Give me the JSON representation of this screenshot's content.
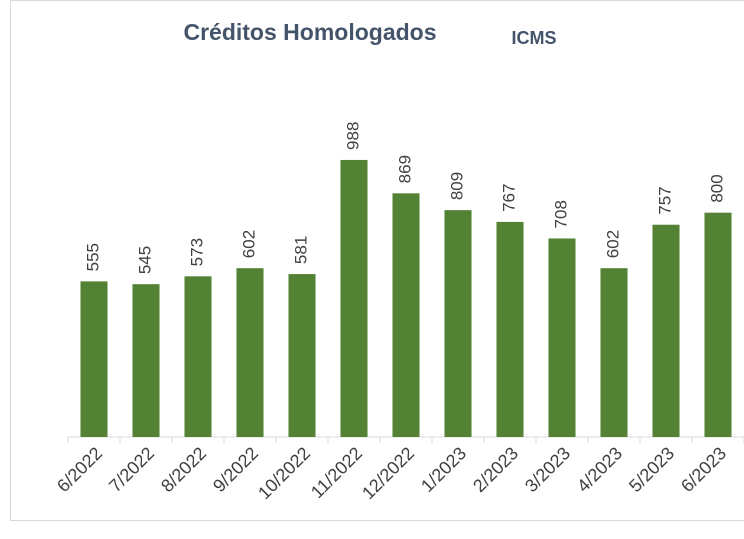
{
  "chart_data": {
    "type": "bar",
    "title": "Créditos Homologados",
    "subtitle": "ICMS",
    "categories": [
      "6/2022",
      "7/2022",
      "8/2022",
      "9/2022",
      "10/2022",
      "11/2022",
      "12/2022",
      "1/2023",
      "2/2023",
      "3/2023",
      "4/2023",
      "5/2023",
      "6/2023"
    ],
    "values": [
      555,
      545,
      573,
      602,
      581,
      988,
      869,
      809,
      767,
      708,
      602,
      757,
      800
    ],
    "color": "#548235",
    "ylim": [
      0,
      1200
    ],
    "grid": false
  }
}
